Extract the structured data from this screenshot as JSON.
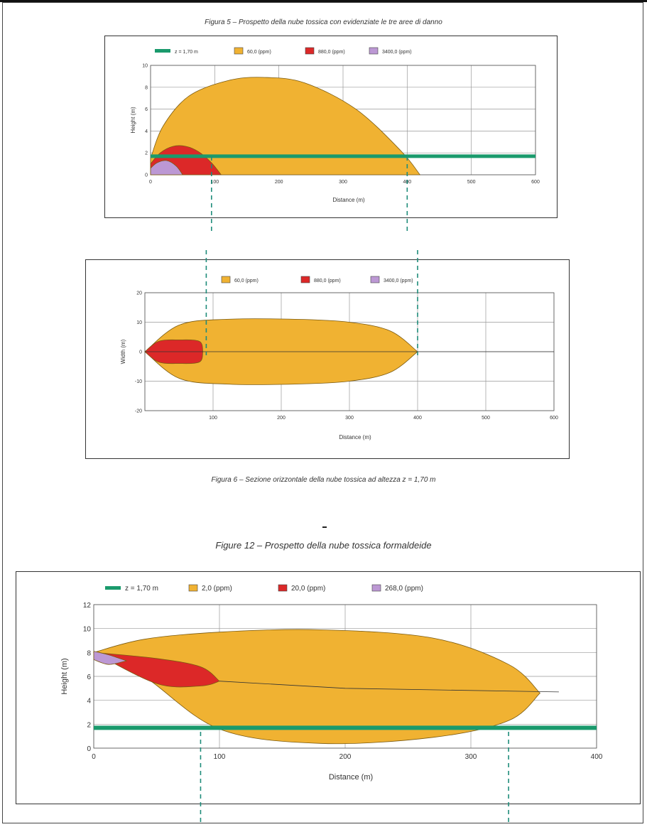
{
  "captions": {
    "fig5": "Figura 5 – Prospetto della nube tossica con evidenziate le tre aree di danno",
    "fig6": "Figura 6 – Sezione orizzontale della nube tossica ad altezza z = 1,70 m",
    "fig12": "Figure 12 – Prospetto della nube tossica formaldeide"
  },
  "colors": {
    "orange": "#F0B232",
    "red": "#DC2828",
    "purple": "#BC98D4",
    "green": "#1A9A6C",
    "teal_dash": "#1E8C7A"
  },
  "chart_data": [
    {
      "type": "area",
      "id": "fig5",
      "xlabel": "Distance (m)",
      "ylabel": "Height (m)",
      "xlim": [
        0,
        600
      ],
      "ylim": [
        0,
        10
      ],
      "x_ticks": [
        "0",
        "100",
        "200",
        "300",
        "400",
        "500",
        "600"
      ],
      "y_ticks": [
        "0",
        "2",
        "4",
        "6",
        "8",
        "10"
      ],
      "grid": true,
      "legend_position": "top",
      "legend": [
        "z = 1,70 m",
        "60,0 (ppm)",
        "880,0 (ppm)",
        "3400,0 (ppm)"
      ],
      "reference_line": {
        "name": "z = 1,70 m",
        "y": 1.7
      },
      "series": [
        {
          "name": "60,0 (ppm)",
          "color": "orange",
          "x": [
            0,
            20,
            60,
            120,
            175,
            240,
            320,
            390,
            420
          ],
          "y": [
            1.5,
            4.5,
            7.2,
            8.6,
            8.9,
            8.4,
            6.0,
            2.2,
            0
          ]
        },
        {
          "name": "880,0 (ppm)",
          "color": "red",
          "x": [
            0,
            15,
            35,
            55,
            75,
            95,
            110
          ],
          "y": [
            1.0,
            2.0,
            2.6,
            2.6,
            2.1,
            1.1,
            0
          ]
        },
        {
          "name": "3400,0 (ppm)",
          "color": "purple",
          "x": [
            0,
            10,
            25,
            40,
            50
          ],
          "y": [
            0.6,
            1.1,
            1.3,
            0.8,
            0
          ]
        }
      ],
      "crossings_x": [
        95,
        400
      ]
    },
    {
      "type": "area",
      "id": "fig6",
      "xlabel": "Distance (m)",
      "ylabel": "Width (m)",
      "xlim": [
        0,
        600
      ],
      "ylim": [
        -20,
        20
      ],
      "x_ticks": [
        "100",
        "200",
        "300",
        "400",
        "500",
        "600"
      ],
      "y_ticks": [
        "20",
        "10",
        "0",
        "-10",
        "-20"
      ],
      "grid": true,
      "legend_position": "top",
      "legend": [
        "60,0 (ppm)",
        "880,0 (ppm)",
        "3400,0 (ppm)"
      ],
      "series": [
        {
          "name": "60,0 (ppm)",
          "color": "orange",
          "x": [
            0,
            50,
            120,
            220,
            300,
            360,
            400
          ],
          "halfwidth": [
            0,
            9.0,
            11.0,
            11.0,
            10.0,
            7.0,
            0
          ]
        },
        {
          "name": "880,0 (ppm)",
          "color": "red",
          "x": [
            0,
            20,
            50,
            80,
            85
          ],
          "halfwidth": [
            0,
            3.5,
            4.0,
            3.5,
            0
          ]
        }
      ],
      "crossings_x": [
        90,
        400
      ]
    },
    {
      "type": "area",
      "id": "fig12",
      "xlabel": "Distance (m)",
      "ylabel": "Height (m)",
      "xlim": [
        0,
        400
      ],
      "ylim": [
        0,
        12
      ],
      "x_ticks": [
        "0",
        "100",
        "200",
        "300",
        "400"
      ],
      "y_ticks": [
        "0",
        "2",
        "4",
        "6",
        "8",
        "10",
        "12"
      ],
      "grid": true,
      "legend_position": "top",
      "legend": [
        "z = 1,70 m",
        "2,0 (ppm)",
        "20,0 (ppm)",
        "268,0 (ppm)"
      ],
      "reference_line": {
        "name": "z = 1,70 m",
        "y": 1.7
      },
      "series": [
        {
          "name": "2,0 (ppm)",
          "color": "orange",
          "x": [
            0,
            40,
            100,
            180,
            270,
            330,
            355
          ],
          "y_top": [
            8.0,
            9.1,
            9.7,
            9.9,
            9.2,
            7.0,
            4.6
          ],
          "y_bottom": [
            8.0,
            6.0,
            1.6,
            0.4,
            0.9,
            2.3,
            4.6
          ]
        },
        {
          "name": "20,0 (ppm)",
          "color": "red",
          "x": [
            0,
            50,
            85,
            100
          ],
          "y_top": [
            8.0,
            7.5,
            6.8,
            5.6
          ],
          "y_bottom": [
            8.0,
            5.4,
            5.2,
            5.6
          ]
        },
        {
          "name": "268,0 (ppm)",
          "color": "purple",
          "x": [
            0,
            12,
            26
          ],
          "y_top": [
            8.1,
            7.8,
            7.3
          ],
          "y_bottom": [
            7.4,
            7.0,
            7.3
          ]
        }
      ],
      "centerline": {
        "x": [
          100,
          200,
          370
        ],
        "y": [
          5.6,
          5.0,
          4.7
        ]
      },
      "crossings_x": [
        85,
        330
      ]
    }
  ]
}
